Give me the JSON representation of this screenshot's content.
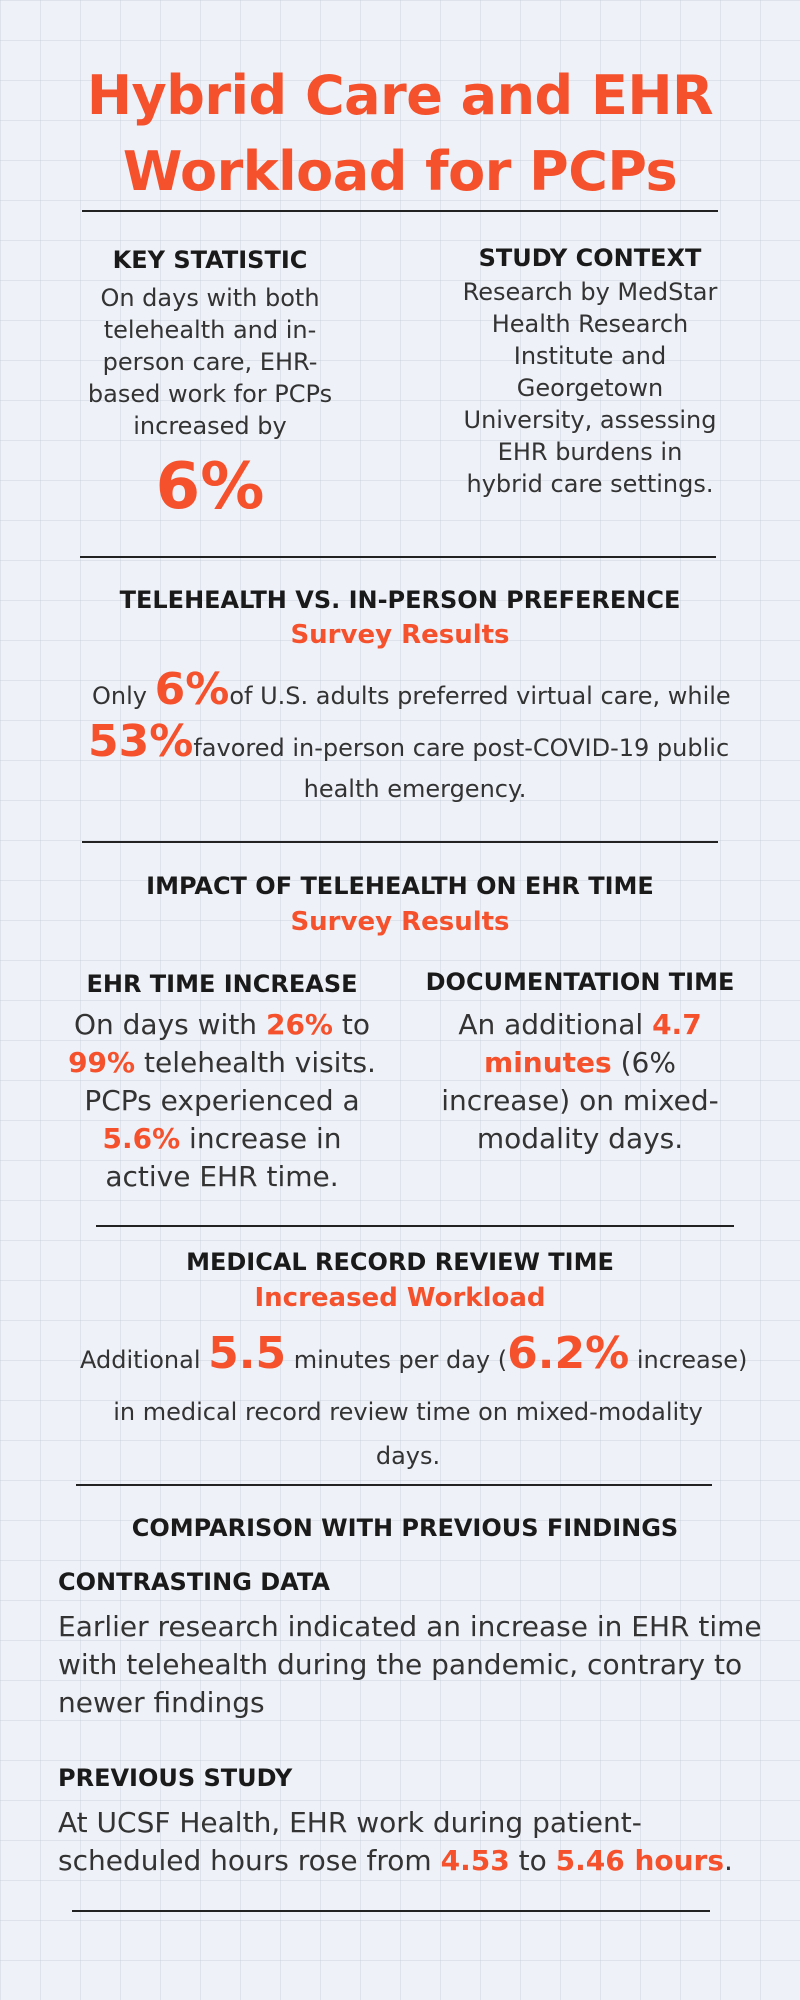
{
  "title": "Hybrid Care and EHR Workload for PCPs",
  "key_statistic": {
    "heading": "KEY STATISTIC",
    "text": "On days with both telehealth and in-person care, EHR-based work for PCPs increased by",
    "value": "6%"
  },
  "study_context": {
    "heading": "STUDY CONTEXT",
    "text": "Research by MedStar Health Research Institute and Georgetown University, assessing EHR burdens in hybrid care settings."
  },
  "preference": {
    "heading": "TELEHEALTH VS. IN-PERSON PREFERENCE",
    "subheading": "Survey Results",
    "pre": "Only",
    "value1": "6%",
    "mid": "of U.S. adults preferred virtual care, while",
    "value2": "53%",
    "post": "favored in-person care post-COVID-19 public",
    "post2": "health emergency."
  },
  "impact": {
    "heading": "IMPACT OF TELEHEALTH ON EHR TIME",
    "subheading": "Survey Results",
    "ehr_increase": {
      "heading": "EHR TIME INCREASE",
      "t1": "On days with",
      "v1": "26%",
      "t2": "to",
      "v2": "99%",
      "t3": "telehealth visits. PCPs experienced a",
      "v3": "5.6%",
      "t4": "increase in active EHR time."
    },
    "documentation": {
      "heading": "DOCUMENTATION TIME",
      "t1": "An additional",
      "v1": "4.7 minutes",
      "t2": "(6% increase) on mixed-modality days."
    }
  },
  "review": {
    "heading": "MEDICAL RECORD REVIEW TIME",
    "subheading": "Increased Workload",
    "t1": "Additional",
    "v1": "5.5",
    "t2": "minutes per day (",
    "v2": "6.2%",
    "t3": "increase)",
    "t4": "in medical record review time on mixed-modality",
    "t5": "days."
  },
  "comparison": {
    "heading": "COMPARISON WITH PREVIOUS FINDINGS",
    "contrasting": {
      "heading": "CONTRASTING DATA",
      "text": "Earlier research indicated an increase in EHR time with telehealth during the pandemic, contrary to newer findings"
    },
    "previous": {
      "heading": "PREVIOUS STUDY",
      "t1": "At UCSF Health, EHR work during patient-scheduled hours rose from",
      "v1": "4.53",
      "t2": "to",
      "v2": "5.46 hours",
      "t3": "."
    }
  },
  "colors": {
    "accent": "#f4512c",
    "text": "#222222",
    "background": "#eef1f7"
  }
}
